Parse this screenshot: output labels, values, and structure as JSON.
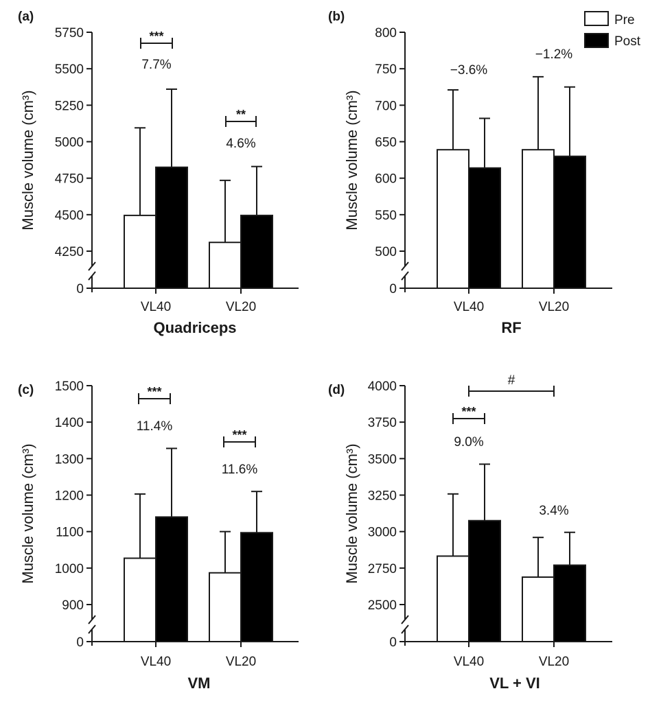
{
  "chart_data": [
    {
      "type": "bar",
      "panel": "(a)",
      "title": "Quadriceps",
      "xlabel": "Quadriceps",
      "ylabel": "Muscle volume (cm³)",
      "categories": [
        "VL40",
        "VL20"
      ],
      "series": [
        {
          "name": "Pre",
          "values": [
            4495,
            4310
          ],
          "error_upper": [
            5095,
            4735
          ]
        },
        {
          "name": "Post",
          "values": [
            4825,
            4495
          ],
          "error_upper": [
            5360,
            4830
          ]
        }
      ],
      "ylim": [
        4250,
        5750
      ],
      "yticks": [
        0,
        4250,
        4500,
        4750,
        5000,
        5250,
        5500,
        5750
      ],
      "ytick_labels": [
        "0",
        "4250",
        "4500",
        "4750",
        "5000",
        "5250",
        "5500",
        "5750"
      ],
      "axis_break": true,
      "annotations": [
        {
          "category": "VL40",
          "stars": "***",
          "change": "7.7%"
        },
        {
          "category": "VL20",
          "stars": "**",
          "change": "4.6%"
        }
      ]
    },
    {
      "type": "bar",
      "panel": "(b)",
      "title": "RF",
      "xlabel": "RF",
      "ylabel": "Muscle volume (cm³)",
      "categories": [
        "VL40",
        "VL20"
      ],
      "series": [
        {
          "name": "Pre",
          "values": [
            639,
            639
          ],
          "error_upper": [
            721,
            739
          ]
        },
        {
          "name": "Post",
          "values": [
            614,
            630
          ],
          "error_upper": [
            682,
            725
          ]
        }
      ],
      "ylim": [
        500,
        800
      ],
      "yticks": [
        0,
        500,
        550,
        600,
        650,
        700,
        750,
        800
      ],
      "ytick_labels": [
        "0",
        "500",
        "550",
        "600",
        "650",
        "700",
        "750",
        "800"
      ],
      "axis_break": true,
      "annotations": [
        {
          "category": "VL40",
          "stars": "",
          "change": "−3.6%"
        },
        {
          "category": "VL20",
          "stars": "",
          "change": "−1.2%"
        }
      ],
      "legend": {
        "position": "top-right",
        "entries": [
          "Pre",
          "Post"
        ]
      }
    },
    {
      "type": "bar",
      "panel": "(c)",
      "title": "VM",
      "xlabel": "VM",
      "ylabel": "Muscle volume (cm³)",
      "categories": [
        "VL40",
        "VL20"
      ],
      "series": [
        {
          "name": "Pre",
          "values": [
            1027,
            987
          ],
          "error_upper": [
            1203,
            1100
          ]
        },
        {
          "name": "Post",
          "values": [
            1140,
            1097
          ],
          "error_upper": [
            1328,
            1210
          ]
        }
      ],
      "ylim": [
        900,
        1500
      ],
      "yticks": [
        0,
        900,
        1000,
        1100,
        1200,
        1300,
        1400,
        1500
      ],
      "ytick_labels": [
        "0",
        "900",
        "1000",
        "1100",
        "1200",
        "1300",
        "1400",
        "1500"
      ],
      "axis_break": true,
      "annotations": [
        {
          "category": "VL40",
          "stars": "***",
          "change": "11.4%"
        },
        {
          "category": "VL20",
          "stars": "***",
          "change": "11.6%"
        }
      ]
    },
    {
      "type": "bar",
      "panel": "(d)",
      "title": "VL + VI",
      "xlabel": "VL + VI",
      "ylabel": "Muscle volume (cm³)",
      "categories": [
        "VL40",
        "VL20"
      ],
      "series": [
        {
          "name": "Pre",
          "values": [
            2832,
            2688
          ],
          "error_upper": [
            3258,
            2960
          ]
        },
        {
          "name": "Post",
          "values": [
            3075,
            2770
          ],
          "error_upper": [
            3462,
            2995
          ]
        }
      ],
      "ylim": [
        2500,
        4000
      ],
      "yticks": [
        0,
        2500,
        2750,
        3000,
        3250,
        3500,
        3750,
        4000
      ],
      "ytick_labels": [
        "0",
        "2500",
        "2750",
        "3000",
        "3250",
        "3500",
        "3750",
        "4000"
      ],
      "axis_break": true,
      "annotations": [
        {
          "category": "VL40",
          "stars": "***",
          "change": "9.0%"
        },
        {
          "category": "VL20",
          "stars": "",
          "change": "3.4%"
        }
      ],
      "between_groups": {
        "symbol": "#",
        "from": "VL40",
        "to": "VL20"
      }
    }
  ],
  "legend": {
    "pre_label": "Pre",
    "post_label": "Post"
  },
  "colors": {
    "pre": "#ffffff",
    "post": "#000000",
    "axis": "#1a1a1a"
  }
}
